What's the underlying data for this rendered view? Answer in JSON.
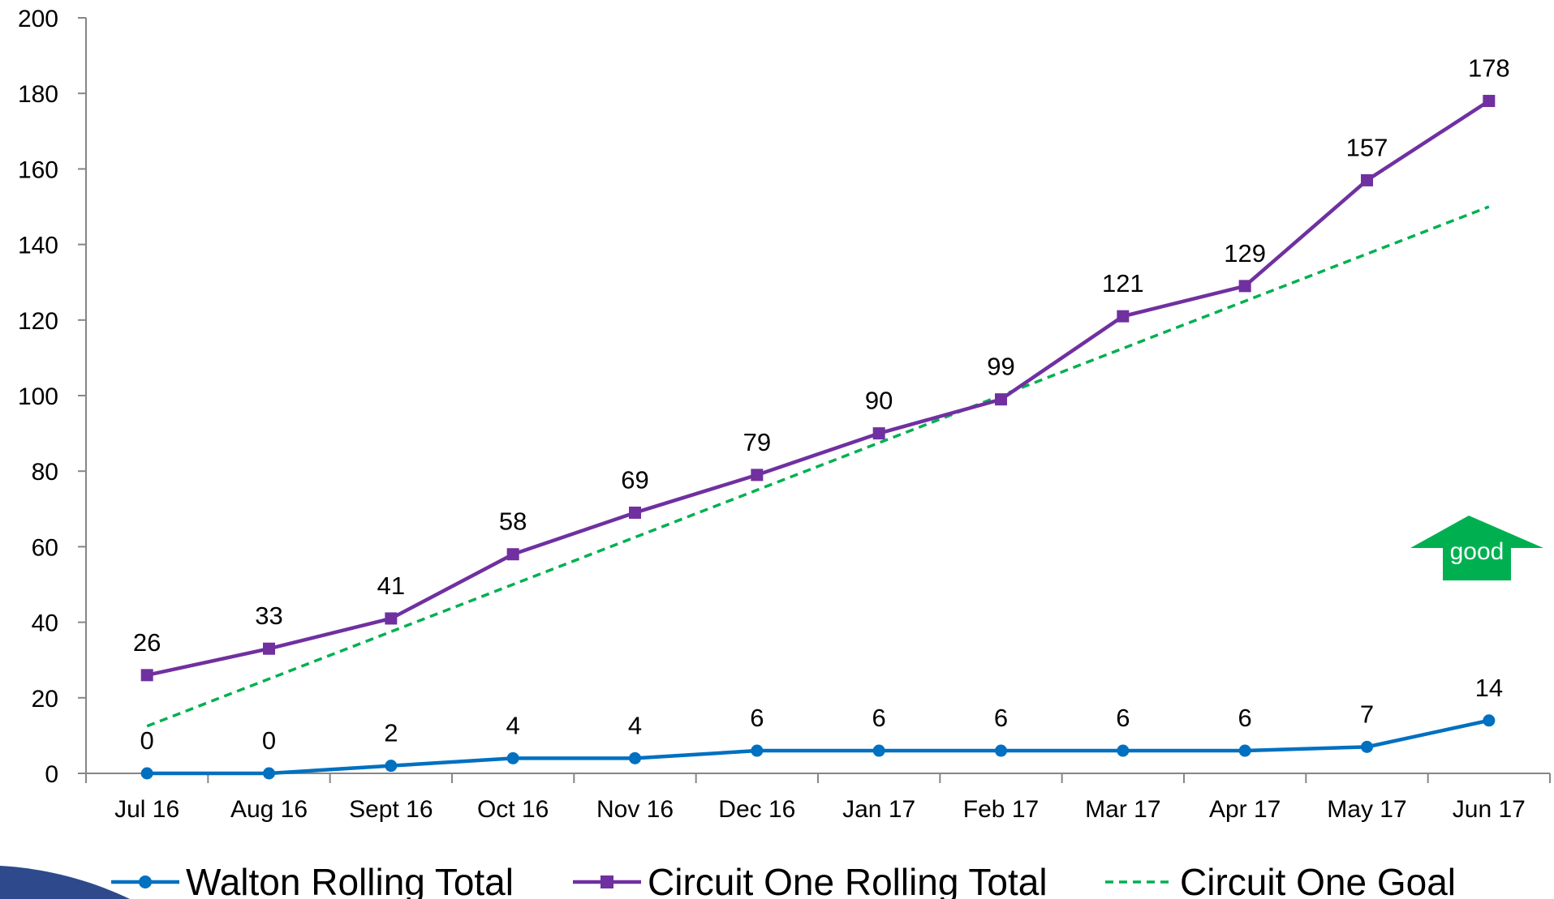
{
  "chart_data": {
    "type": "line",
    "categories": [
      "Jul 16",
      "Aug 16",
      "Sept 16",
      "Oct 16",
      "Nov 16",
      "Dec 16",
      "Jan 17",
      "Feb 17",
      "Mar 17",
      "Apr 17",
      "May 17",
      "Jun 17"
    ],
    "ylim": [
      0,
      200
    ],
    "yticks": [
      0,
      20,
      40,
      60,
      80,
      100,
      120,
      140,
      160,
      180,
      200
    ],
    "grid": false,
    "legend_position": "bottom",
    "series": [
      {
        "name": "Walton Rolling Total",
        "values": [
          0,
          0,
          2,
          4,
          4,
          6,
          6,
          6,
          6,
          6,
          7,
          14
        ],
        "color": "#0070C0",
        "marker": "circle",
        "style": "solid",
        "labels": true
      },
      {
        "name": "Circuit One Rolling Total",
        "values": [
          26,
          33,
          41,
          58,
          69,
          79,
          90,
          99,
          121,
          129,
          157,
          178
        ],
        "color": "#7030A0",
        "marker": "square",
        "style": "solid",
        "labels": true
      },
      {
        "name": "Circuit One Goal",
        "values": [
          12.5,
          25,
          37.5,
          50,
          62.5,
          75,
          87.5,
          100,
          112.5,
          125,
          137.5,
          150
        ],
        "color": "#00B050",
        "marker": "none",
        "style": "dashed",
        "labels": false
      }
    ],
    "annotation": {
      "text": "good",
      "icon": "up-arrow-icon",
      "color": "#00B050"
    },
    "decoration_color": "#2E4A8C"
  }
}
